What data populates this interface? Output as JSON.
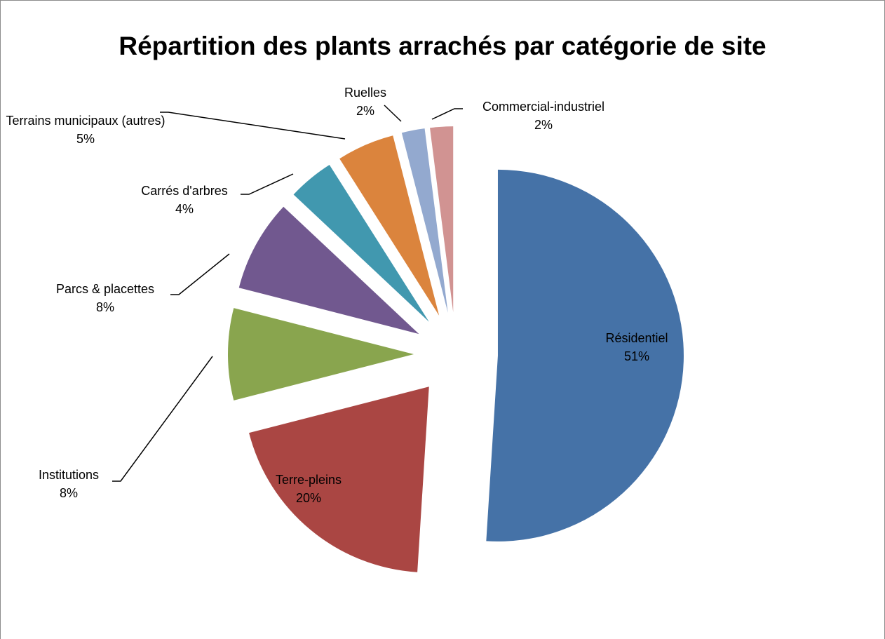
{
  "chart_data": {
    "type": "pie",
    "title": "Répartition des plants arrachés par catégorie de site",
    "categories": [
      "Résidentiel",
      "Terre-pleins",
      "Institutions",
      "Parcs & placettes",
      "Carrés d'arbres",
      "Terrains municipaux (autres)",
      "Ruelles",
      "Commercial-industriel"
    ],
    "values": [
      51,
      20,
      8,
      8,
      4,
      5,
      2,
      2
    ],
    "value_labels": [
      "51%",
      "20%",
      "8%",
      "8%",
      "4%",
      "5%",
      "2%",
      "2%"
    ],
    "colors": [
      "#4572a7",
      "#aa4643",
      "#89a54e",
      "#71588f",
      "#4198af",
      "#db843d",
      "#93a9cf",
      "#d19392"
    ]
  }
}
